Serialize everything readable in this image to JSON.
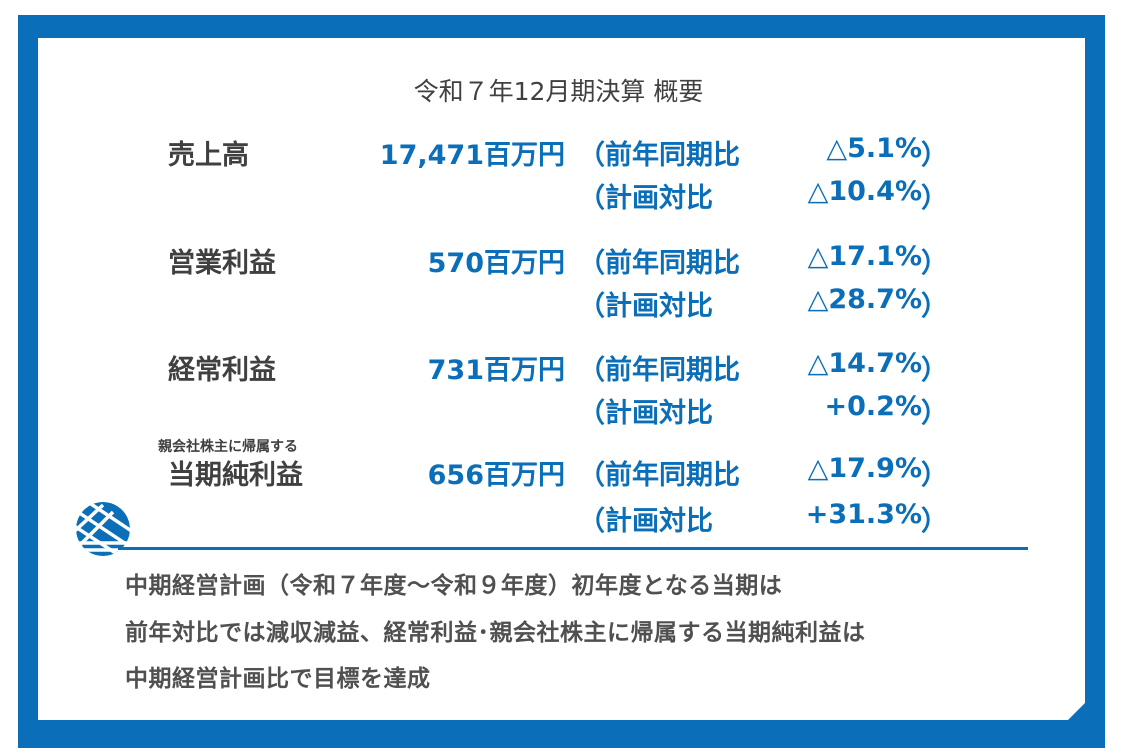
{
  "title": "令和７年12月期決算 概要",
  "rows": [
    {
      "label": "売上高",
      "value": "17,471百万円",
      "yoy_label": "（前年同期比",
      "yoy": "△5.1%",
      "plan_label": "（計画対比",
      "plan": "△10.4%"
    },
    {
      "label": "営業利益",
      "value": "570百万円",
      "yoy_label": "（前年同期比",
      "yoy": "△17.1%",
      "plan_label": "（計画対比",
      "plan": "△28.7%"
    },
    {
      "label": "経常利益",
      "value": "731百万円",
      "yoy_label": "（前年同期比",
      "yoy": "△14.7%",
      "plan_label": "（計画対比",
      "plan": "+0.2%"
    },
    {
      "label": "当期純利益",
      "sublabel": "親会社株主に帰属する",
      "value": "656百万円",
      "yoy_label": "（前年同期比",
      "yoy": "△17.9%",
      "plan_label": "（計画対比",
      "plan": "+31.3%"
    }
  ],
  "close_paren": "）",
  "notes": [
    "中期経営計画（令和７年度～令和９年度）初年度となる当期は",
    "前年対比では減収減益、経常利益･親会社株主に帰属する当期純利益は",
    "中期経営計画比で目標を達成"
  ],
  "colors": {
    "accent": "#0A6EB8",
    "text": "#404040"
  },
  "logo_icon": "striped-circle-logo"
}
